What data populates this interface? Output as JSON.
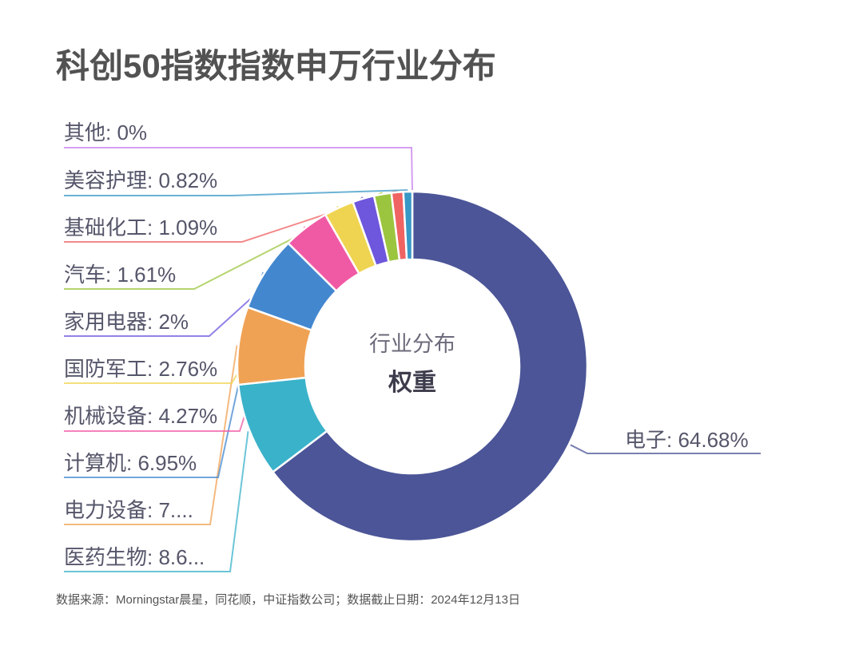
{
  "title": "科创50指数指数申万行业分布",
  "chart_data": {
    "type": "pie",
    "variant": "donut",
    "title": "科创50指数指数申万行业分布",
    "center_text": {
      "line1": "行业分布",
      "line2": "权重"
    },
    "unit": "%",
    "start_angle": "top, clockwise",
    "categories": [
      "电子",
      "医药生物",
      "电力设备",
      "计算机",
      "机械设备",
      "国防军工",
      "家用电器",
      "汽车",
      "基础化工",
      "美容护理",
      "其他"
    ],
    "values": [
      64.68,
      8.65,
      7.17,
      6.95,
      4.27,
      2.76,
      2,
      1.61,
      1.09,
      0.82,
      0
    ],
    "value_labels": [
      "64.68%",
      "8.6...",
      "7....",
      "6.95%",
      "4.27%",
      "2.76%",
      "2%",
      "1.61%",
      "1.09%",
      "0.82%",
      "0%"
    ],
    "labels": [
      "电子: 64.68%",
      "医药生物: 8.6...",
      "电力设备: 7....",
      "计算机: 6.95%",
      "机械设备: 4.27%",
      "国防军工: 2.76%",
      "家用电器: 2%",
      "汽车: 1.61%",
      "基础化工: 1.09%",
      "美容护理: 0.82%",
      "其他: 0%"
    ],
    "colors": [
      "#4b5597",
      "#3ab2ca",
      "#f0a254",
      "#4387cf",
      "#f05aa5",
      "#efd451",
      "#6e56dd",
      "#9cc53f",
      "#ef6363",
      "#3898c6",
      "#c77eea"
    ],
    "legend": "none (leader-line labels)"
  },
  "footer": {
    "source": "数据来源：Morningstar晨星，同花顺，中证指数公司；数据截止日期：2024年12月13日"
  }
}
